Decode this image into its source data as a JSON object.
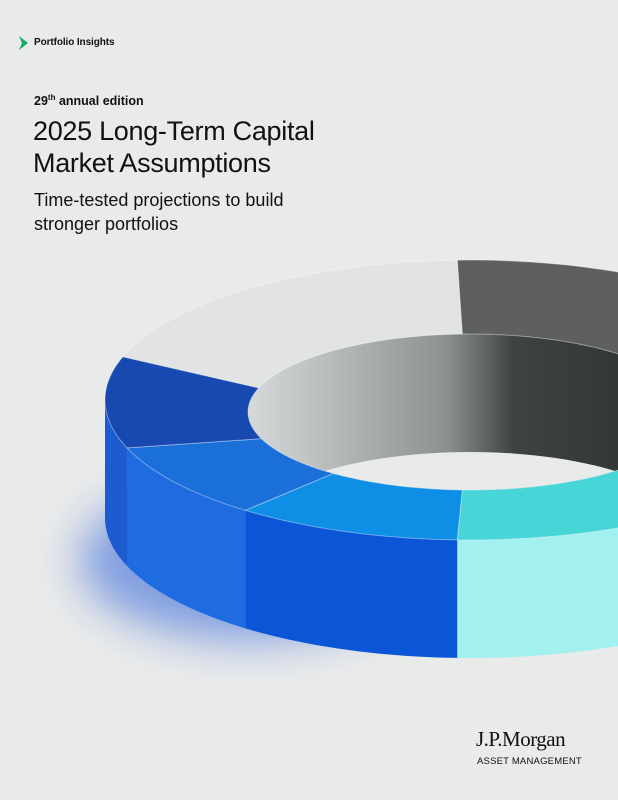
{
  "header": {
    "label": "Portfolio Insights"
  },
  "edition": {
    "number": "29",
    "suffix": "th",
    "text": "annual edition"
  },
  "title": [
    "2025 Long-Term Capital",
    "Market Assumptions"
  ],
  "subtitle": [
    "Time-tested projections to build",
    "stronger portfolios"
  ],
  "logo": {
    "name": "J.P.Morgan",
    "division": "ASSET MANAGEMENT"
  }
}
